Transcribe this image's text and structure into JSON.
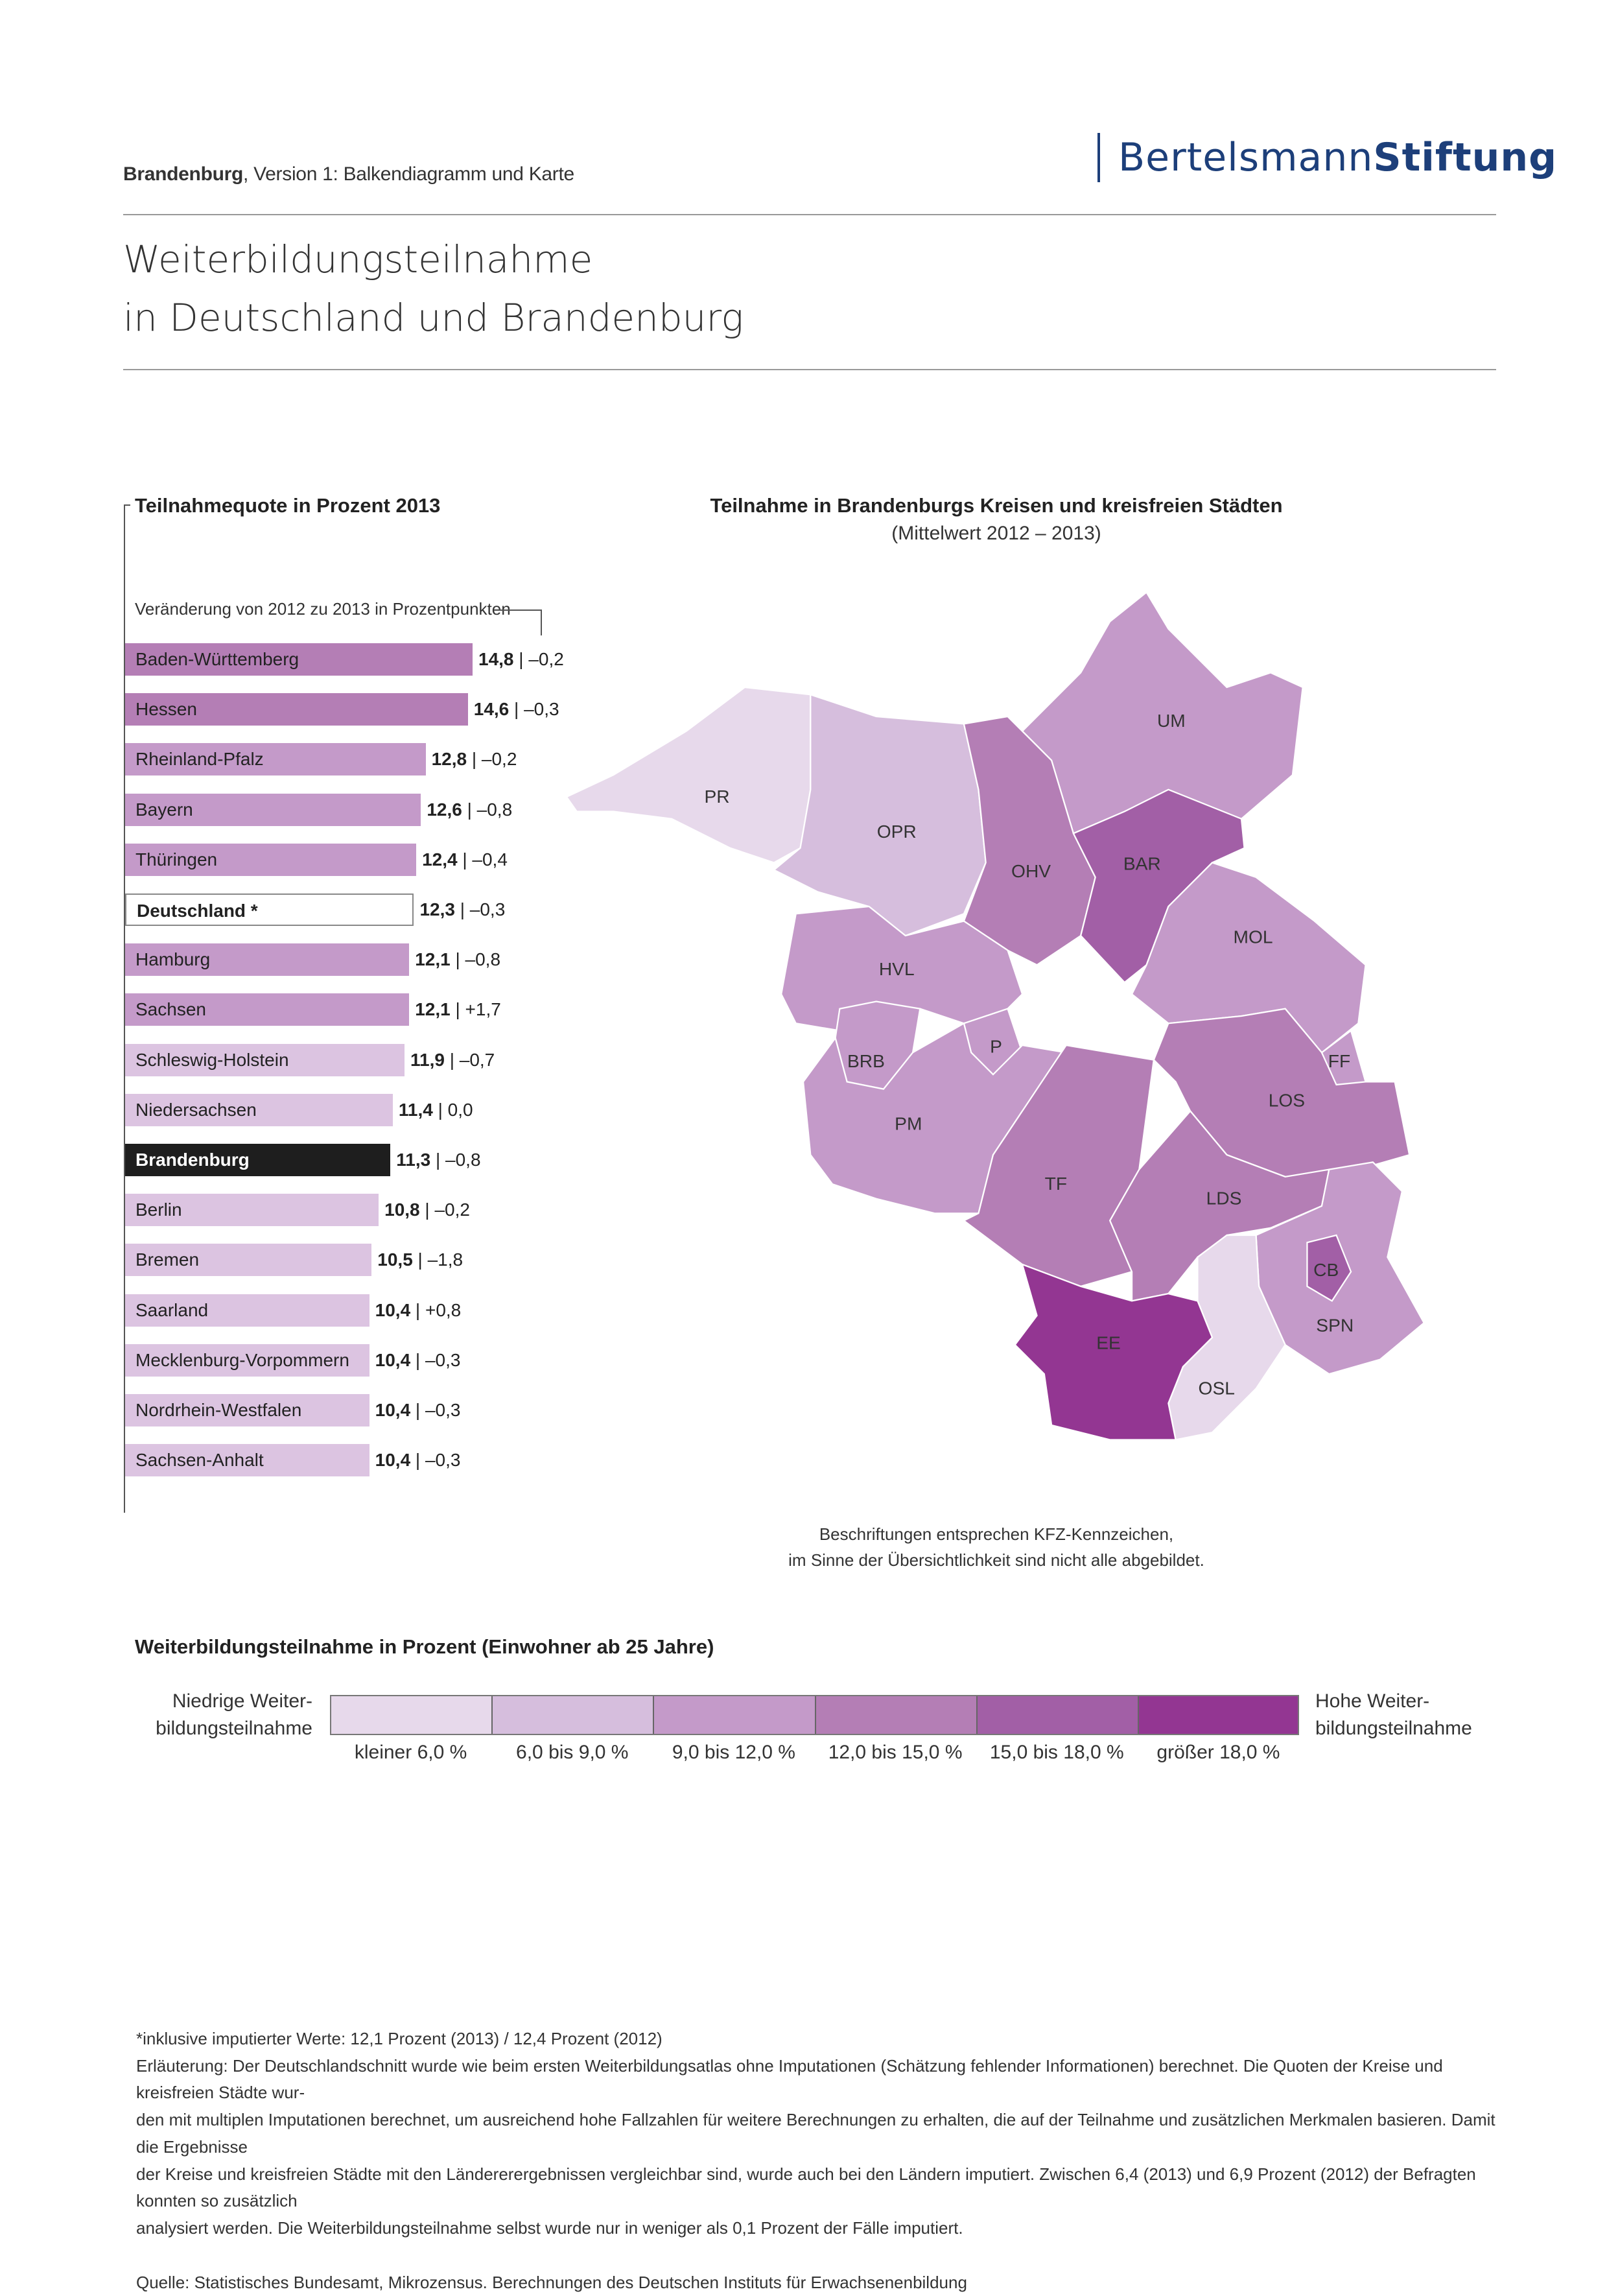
{
  "header": {
    "region": "Brandenburg",
    "version": ", Version 1: Balkendiagramm und Karte",
    "logo_light": "Bertelsmann",
    "logo_bold": "Stiftung"
  },
  "title": {
    "line1": "Weiterbildungsteilnahme",
    "line2": "in Deutschland und Brandenburg"
  },
  "colors": {
    "c1": "#e7d9eb",
    "c2": "#d6bedd",
    "c3": "#c49ac9",
    "c4": "#b47eb5",
    "c5": "#a25fa6",
    "c6": "#933692",
    "bar_light": "#dcc4e1",
    "highlight": "#1e1e1e"
  },
  "chart_data": {
    "type": "bar",
    "title": "Teilnahmequote in Prozent 2013",
    "change_label": "Veränderung von 2012 zu 2013 in Prozentpunkten",
    "categories": [
      "Baden-Württemberg",
      "Hessen",
      "Rheinland-Pfalz",
      "Bayern",
      "Thüringen",
      "Deutschland *",
      "Hamburg",
      "Sachsen",
      "Schleswig-Holstein",
      "Niedersachsen",
      "Brandenburg",
      "Berlin",
      "Bremen",
      "Saarland",
      "Mecklenburg-Vorpommern",
      "Nordrhein-Westfalen",
      "Sachsen-Anhalt"
    ],
    "values": [
      14.8,
      14.6,
      12.8,
      12.6,
      12.4,
      12.3,
      12.1,
      12.1,
      11.9,
      11.4,
      11.3,
      10.8,
      10.5,
      10.4,
      10.4,
      10.4,
      10.4
    ],
    "value_labels": [
      "14,8",
      "14,6",
      "12,8",
      "12,6",
      "12,4",
      "12,3",
      "12,1",
      "12,1",
      "11,9",
      "11,4",
      "11,3",
      "10,8",
      "10,5",
      "10,4",
      "10,4",
      "10,4",
      "10,4"
    ],
    "changes": [
      "–0,2",
      "–0,3",
      "–0,2",
      "–0,8",
      "–0,4",
      "–0,3",
      "–0,8",
      "+1,7",
      "–0,7",
      " 0,0",
      "–0,8",
      "–0,2",
      "–1,8",
      "+0,8",
      "–0,3",
      "–0,3",
      "–0,3"
    ],
    "xlim": [
      0,
      15
    ]
  },
  "map": {
    "title": "Teilnahme in Brandenburgs Kreisen und kreisfreien Städten",
    "subtitle": "(Mittelwert 2012 – 2013)",
    "caption1": "Beschriftungen entsprechen KFZ-Kennzeichen,",
    "caption2": "im Sinne der Übersichtlichkeit sind nicht alle abgebildet.",
    "districts": [
      {
        "code": "PR",
        "class": 1
      },
      {
        "code": "OPR",
        "class": 2
      },
      {
        "code": "UM",
        "class": 3
      },
      {
        "code": "OHV",
        "class": 4
      },
      {
        "code": "BAR",
        "class": 5
      },
      {
        "code": "MOL",
        "class": 3
      },
      {
        "code": "HVL",
        "class": 3
      },
      {
        "code": "BRB",
        "class": 3
      },
      {
        "code": "P",
        "class": 3
      },
      {
        "code": "PM",
        "class": 3
      },
      {
        "code": "TF",
        "class": 4
      },
      {
        "code": "LOS",
        "class": 4
      },
      {
        "code": "FF",
        "class": 3
      },
      {
        "code": "LDS",
        "class": 4
      },
      {
        "code": "SPN",
        "class": 3
      },
      {
        "code": "CB",
        "class": 5
      },
      {
        "code": "OSL",
        "class": 1
      },
      {
        "code": "EE",
        "class": 6
      }
    ]
  },
  "legend": {
    "title": "Weiterbildungsteilnahme in Prozent (Einwohner ab 25 Jahre)",
    "low1": "Niedrige Weiter-",
    "low2": "bildungsteilnahme",
    "high1": "Hohe Weiter-",
    "high2": "bildungsteilnahme",
    "classes": [
      "kleiner 6,0 %",
      "6,0 bis 9,0 %",
      "9,0 bis 12,0 %",
      "12,0 bis 15,0 %",
      "15,0 bis 18,0 %",
      "größer 18,0 %"
    ]
  },
  "footnotes": {
    "star": "*inklusive imputierter Werte: 12,1 Prozent (2013) / 12,4 Prozent (2012)",
    "l1": "Erläuterung: Der Deutschlandschnitt wurde wie beim ersten Weiterbildungsatlas ohne Imputationen (Schätzung fehlender Informationen) berechnet. Die Quoten der Kreise und kreisfreien Städte wur-",
    "l2": "den mit multiplen Imputationen berechnet, um ausreichend hohe Fallzahlen für weitere Berechnungen zu erhalten, die auf der Teilnahme und zusätzlichen Merkmalen basieren. Damit die Ergebnisse",
    "l3": "der Kreise und kreisfreien Städte mit den Ländererergebnissen vergleichbar sind, wurde auch bei den Ländern imputiert. Zwischen 6,4 (2013) und 6,9 Prozent (2012) der Befragten konnten so zusätzlich",
    "l4": "analysiert werden. Die Weiterbildungsteilnahme selbst wurde nur in weniger als 0,1 Prozent der Fälle imputiert.",
    "source": "Quelle: Statistisches Bundesamt, Mikrozensus. Berechnungen des Deutschen Instituts für Erwachsenenbildung"
  }
}
